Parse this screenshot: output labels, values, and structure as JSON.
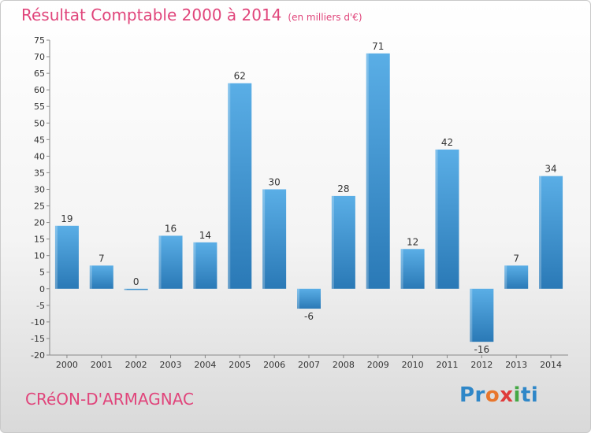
{
  "header": {
    "title": "Résultat Comptable 2000 à 2014",
    "subtitle": "(en milliers d'€)"
  },
  "footer": {
    "town": "CRéON-D'ARMAGNAC",
    "logo": {
      "p1": "Pr",
      "p2": "o",
      "p3": "x",
      "p4": "i",
      "p5": "ti"
    }
  },
  "colors": {
    "bar_light": "#5aaee6",
    "bar_dark": "#2a79b6",
    "title": "#e0457b"
  },
  "chart_data": {
    "type": "bar",
    "title": "Résultat Comptable 2000 à 2014",
    "xlabel": "",
    "ylabel": "",
    "categories": [
      "2000",
      "2001",
      "2002",
      "2003",
      "2004",
      "2005",
      "2006",
      "2007",
      "2008",
      "2009",
      "2010",
      "2011",
      "2012",
      "2013",
      "2014"
    ],
    "values": [
      19,
      7,
      0,
      16,
      14,
      62,
      30,
      -6,
      28,
      71,
      12,
      42,
      -16,
      7,
      34
    ],
    "ylim": [
      -20,
      75
    ],
    "yticks": [
      -20,
      -15,
      -10,
      -5,
      0,
      5,
      10,
      15,
      20,
      25,
      30,
      35,
      40,
      45,
      50,
      55,
      60,
      65,
      70,
      75
    ],
    "grid": false
  }
}
